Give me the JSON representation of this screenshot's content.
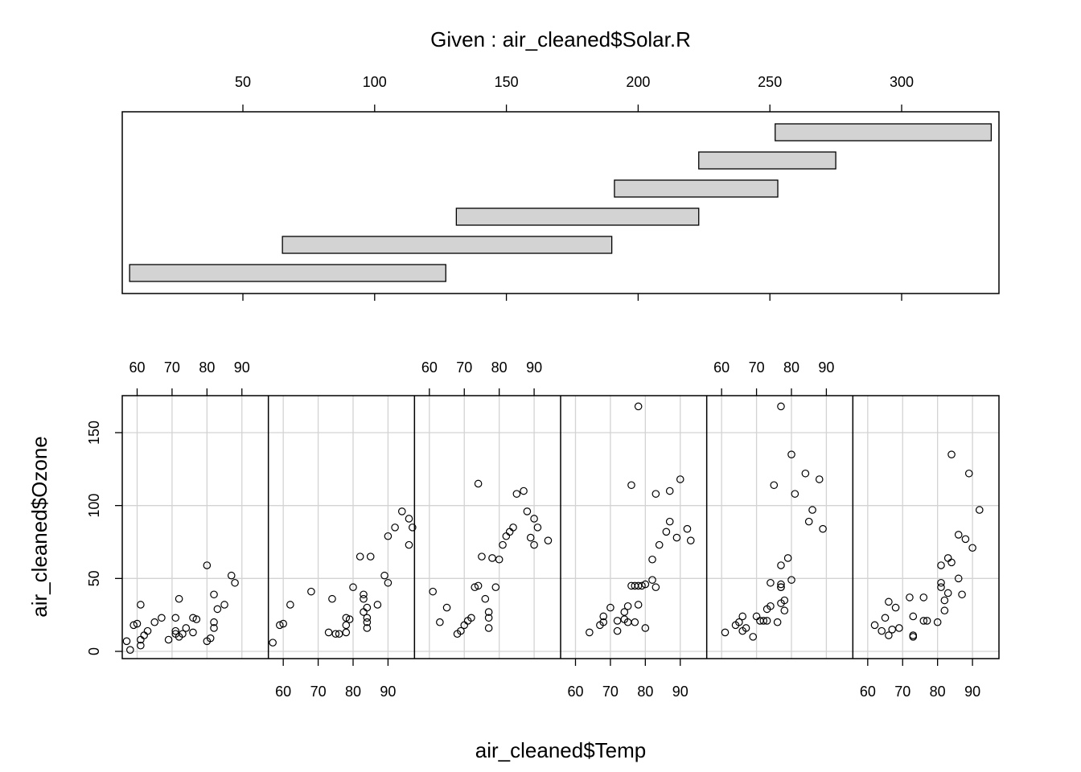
{
  "chart_data": {
    "type": "scatter",
    "title": "Given : air_cleaned$Solar.R",
    "xlabel": "air_cleaned$Temp",
    "ylabel": "air_cleaned$Ozone",
    "given": {
      "axis_range": [
        7,
        334
      ],
      "ticks": [
        50,
        100,
        150,
        200,
        250,
        300
      ],
      "intervals": [
        [
          7,
          127
        ],
        [
          65,
          190
        ],
        [
          131,
          223
        ],
        [
          191,
          253
        ],
        [
          223,
          275
        ],
        [
          252,
          334
        ]
      ]
    },
    "panels_x_range": [
      57,
      97
    ],
    "panels_y_range": [
      1,
      168
    ],
    "x_ticks": [
      60,
      70,
      80,
      90
    ],
    "y_ticks": [
      0,
      50,
      100,
      150
    ],
    "grid": true,
    "panels": [
      {
        "points": [
          [
            57,
            7
          ],
          [
            59,
            18
          ],
          [
            60,
            19
          ],
          [
            58,
            1
          ],
          [
            62,
            11
          ],
          [
            61,
            8
          ],
          [
            61,
            4
          ],
          [
            63,
            14
          ],
          [
            65,
            20
          ],
          [
            61,
            32
          ],
          [
            67,
            23
          ],
          [
            69,
            8
          ],
          [
            71,
            12
          ],
          [
            72,
            10
          ],
          [
            71,
            23
          ],
          [
            71,
            14
          ],
          [
            72,
            36
          ],
          [
            73,
            12
          ],
          [
            74,
            16
          ],
          [
            76,
            13
          ],
          [
            76,
            23
          ],
          [
            77,
            22
          ],
          [
            80,
            59
          ],
          [
            81,
            9
          ],
          [
            82,
            39
          ],
          [
            82,
            16
          ],
          [
            82,
            20
          ],
          [
            83,
            29
          ],
          [
            80,
            7
          ],
          [
            85,
            32
          ],
          [
            87,
            52
          ],
          [
            88,
            47
          ]
        ]
      },
      {
        "points": [
          [
            57,
            6
          ],
          [
            59,
            18
          ],
          [
            60,
            19
          ],
          [
            62,
            32
          ],
          [
            68,
            41
          ],
          [
            73,
            13
          ],
          [
            75,
            12
          ],
          [
            76,
            12
          ],
          [
            74,
            36
          ],
          [
            78,
            23
          ],
          [
            79,
            22
          ],
          [
            78,
            18
          ],
          [
            78,
            13
          ],
          [
            80,
            44
          ],
          [
            82,
            65
          ],
          [
            83,
            39
          ],
          [
            83,
            36
          ],
          [
            83,
            27
          ],
          [
            84,
            30
          ],
          [
            84,
            23
          ],
          [
            84,
            16
          ],
          [
            84,
            20
          ],
          [
            85,
            65
          ],
          [
            87,
            32
          ],
          [
            89,
            52
          ],
          [
            90,
            47
          ],
          [
            90,
            79
          ],
          [
            92,
            85
          ],
          [
            94,
            96
          ],
          [
            96,
            91
          ],
          [
            97,
            85
          ],
          [
            96,
            73
          ]
        ]
      },
      {
        "points": [
          [
            61,
            41
          ],
          [
            63,
            20
          ],
          [
            65,
            30
          ],
          [
            68,
            12
          ],
          [
            69,
            14
          ],
          [
            70,
            18
          ],
          [
            71,
            21
          ],
          [
            72,
            23
          ],
          [
            73,
            44
          ],
          [
            74,
            45
          ],
          [
            74,
            115
          ],
          [
            75,
            65
          ],
          [
            76,
            36
          ],
          [
            77,
            27
          ],
          [
            77,
            23
          ],
          [
            77,
            16
          ],
          [
            78,
            64
          ],
          [
            79,
            44
          ],
          [
            80,
            63
          ],
          [
            81,
            73
          ],
          [
            82,
            79
          ],
          [
            83,
            82
          ],
          [
            84,
            85
          ],
          [
            85,
            108
          ],
          [
            87,
            110
          ],
          [
            88,
            96
          ],
          [
            89,
            78
          ],
          [
            90,
            91
          ],
          [
            90,
            73
          ],
          [
            91,
            85
          ],
          [
            94,
            76
          ]
        ]
      },
      {
        "points": [
          [
            64,
            13
          ],
          [
            67,
            18
          ],
          [
            68,
            20
          ],
          [
            68,
            24
          ],
          [
            70,
            30
          ],
          [
            72,
            14
          ],
          [
            72,
            21
          ],
          [
            74,
            22
          ],
          [
            74,
            27
          ],
          [
            75,
            20
          ],
          [
            75,
            31
          ],
          [
            76,
            45
          ],
          [
            76,
            114
          ],
          [
            77,
            45
          ],
          [
            77,
            20
          ],
          [
            78,
            45
          ],
          [
            78,
            168
          ],
          [
            78,
            32
          ],
          [
            79,
            45
          ],
          [
            80,
            16
          ],
          [
            80,
            46
          ],
          [
            82,
            63
          ],
          [
            82,
            49
          ],
          [
            83,
            108
          ],
          [
            83,
            44
          ],
          [
            84,
            73
          ],
          [
            86,
            82
          ],
          [
            87,
            110
          ],
          [
            87,
            89
          ],
          [
            89,
            78
          ],
          [
            90,
            118
          ],
          [
            92,
            84
          ],
          [
            93,
            76
          ]
        ]
      },
      {
        "points": [
          [
            61,
            13
          ],
          [
            64,
            18
          ],
          [
            65,
            20
          ],
          [
            66,
            24
          ],
          [
            66,
            14
          ],
          [
            67,
            16
          ],
          [
            69,
            10
          ],
          [
            70,
            24
          ],
          [
            71,
            21
          ],
          [
            72,
            21
          ],
          [
            73,
            29
          ],
          [
            73,
            21
          ],
          [
            74,
            47
          ],
          [
            74,
            31
          ],
          [
            75,
            114
          ],
          [
            76,
            20
          ],
          [
            77,
            44
          ],
          [
            77,
            33
          ],
          [
            77,
            59
          ],
          [
            77,
            168
          ],
          [
            77,
            46
          ],
          [
            77,
            44
          ],
          [
            78,
            35
          ],
          [
            78,
            28
          ],
          [
            79,
            64
          ],
          [
            80,
            135
          ],
          [
            80,
            49
          ],
          [
            81,
            108
          ],
          [
            84,
            122
          ],
          [
            85,
            89
          ],
          [
            86,
            97
          ],
          [
            88,
            118
          ],
          [
            89,
            84
          ]
        ]
      },
      {
        "points": [
          [
            62,
            18
          ],
          [
            64,
            14
          ],
          [
            65,
            23
          ],
          [
            66,
            34
          ],
          [
            66,
            11
          ],
          [
            67,
            15
          ],
          [
            68,
            30
          ],
          [
            69,
            16
          ],
          [
            72,
            37
          ],
          [
            73,
            24
          ],
          [
            73,
            10
          ],
          [
            73,
            11
          ],
          [
            76,
            37
          ],
          [
            76,
            21
          ],
          [
            77,
            21
          ],
          [
            80,
            20
          ],
          [
            81,
            59
          ],
          [
            81,
            47
          ],
          [
            81,
            44
          ],
          [
            82,
            35
          ],
          [
            82,
            28
          ],
          [
            83,
            40
          ],
          [
            83,
            64
          ],
          [
            84,
            61
          ],
          [
            84,
            135
          ],
          [
            86,
            50
          ],
          [
            86,
            80
          ],
          [
            87,
            39
          ],
          [
            88,
            77
          ],
          [
            89,
            122
          ],
          [
            90,
            71
          ],
          [
            92,
            97
          ]
        ]
      }
    ]
  }
}
